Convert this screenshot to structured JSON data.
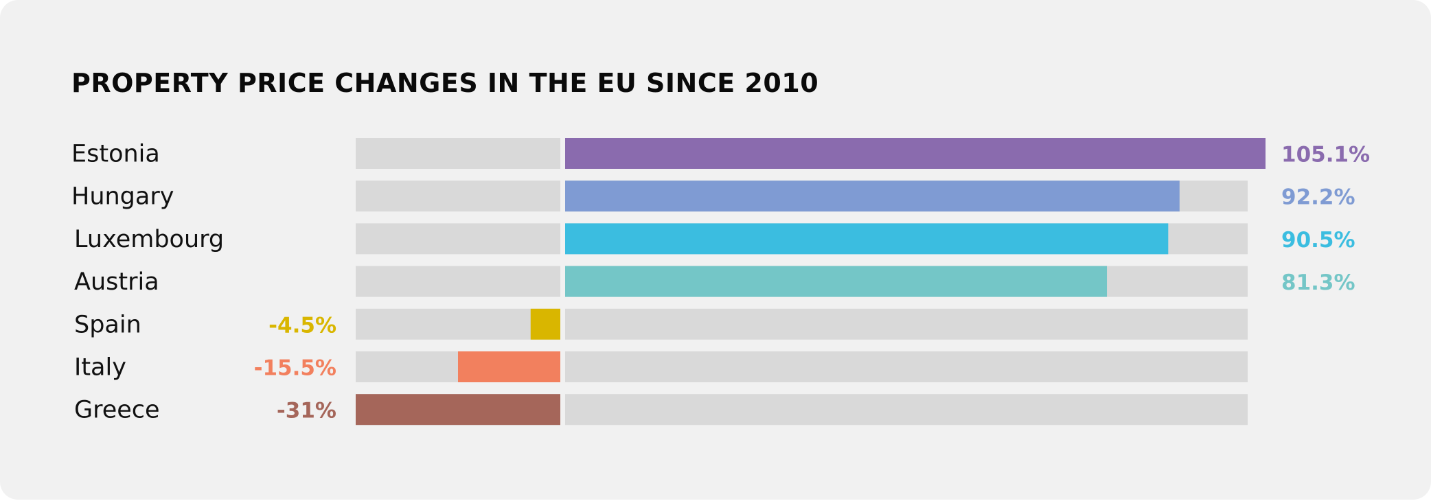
{
  "chart_data": {
    "type": "bar",
    "orientation": "horizontal",
    "title": "PROPERTY PRICE CHANGES IN THE EU SINCE 2010",
    "xlim": [
      -31,
      105.1
    ],
    "grid": false,
    "legend": "none",
    "categories": [
      "Estonia",
      "Hungary",
      "Luxembourg",
      "Austria",
      "Spain",
      "Italy",
      "Greece"
    ],
    "values": [
      105.1,
      92.2,
      90.5,
      81.3,
      -4.5,
      -15.5,
      -31
    ],
    "value_labels": [
      "105.1%",
      "92.2%",
      "90.5%",
      "81.3%",
      "-4.5%",
      "-15.5%",
      "-31%"
    ],
    "colors": [
      "#8a6bae",
      "#7f9bd3",
      "#3bbde0",
      "#74c6c7",
      "#d9b600",
      "#f2805e",
      "#a5665a"
    ],
    "track_color": "#d9d9d9"
  }
}
